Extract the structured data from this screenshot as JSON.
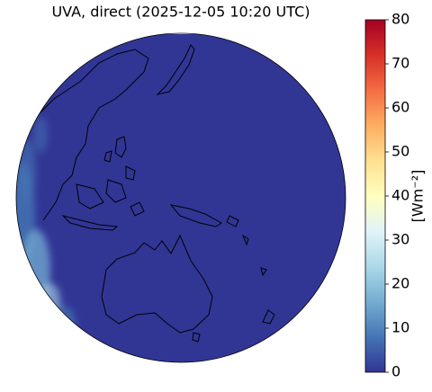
{
  "chart_data": {
    "type": "map",
    "title": "UVA, direct (2025-12-05 10:20 UTC)",
    "colorbar": {
      "label": "[Wm⁻²]",
      "lim": [
        0,
        80
      ],
      "ticks": [
        0,
        10,
        20,
        30,
        40,
        50,
        60,
        70,
        80
      ],
      "colors": [
        "#313695",
        "#4575b4",
        "#74add1",
        "#abd9e9",
        "#e0f3f8",
        "#ffffbf",
        "#fee090",
        "#fdae61",
        "#f46d43",
        "#d73027",
        "#a50026"
      ]
    }
  }
}
